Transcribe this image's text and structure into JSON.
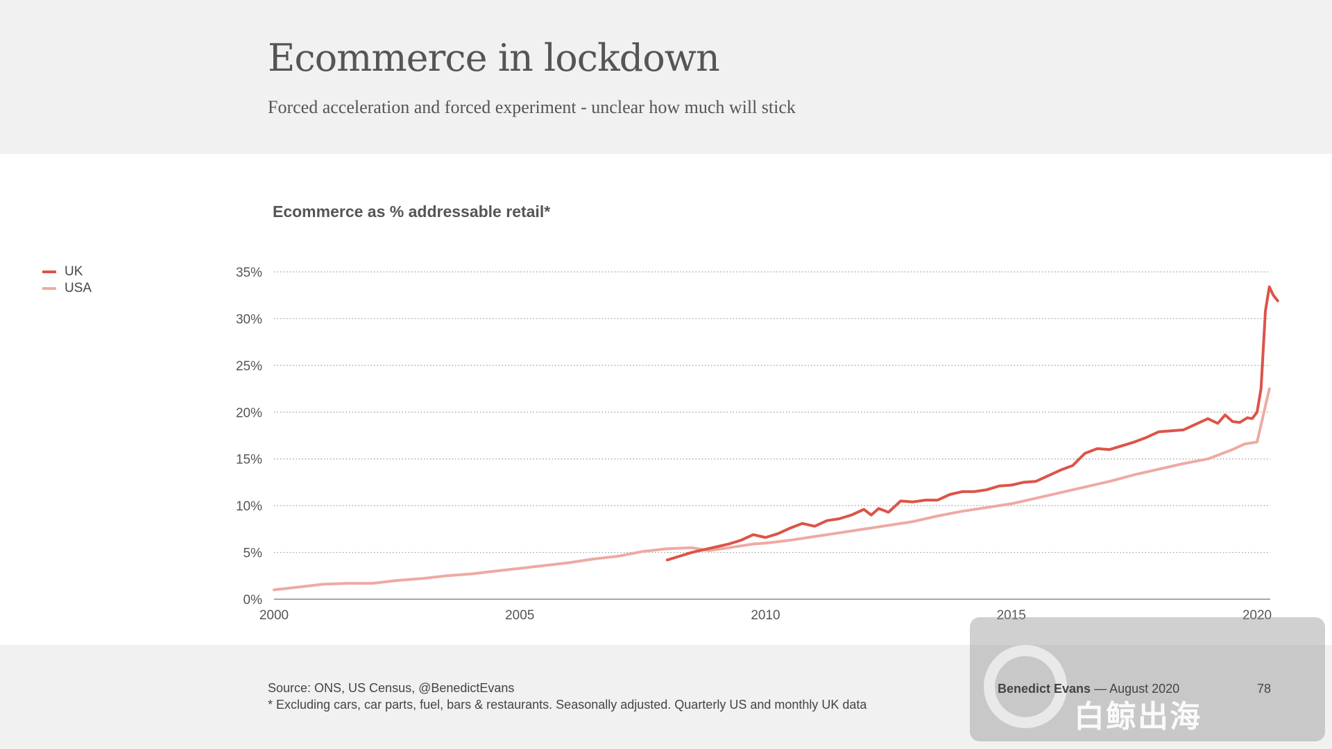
{
  "header": {
    "title": "Ecommerce in lockdown",
    "subtitle": "Forced acceleration and forced experiment - unclear how much will stick"
  },
  "footer": {
    "source": "Source: ONS, US Census, @BenedictEvans",
    "note": "* Excluding cars, car parts, fuel, bars & restaurants. Seasonally adjusted. Quarterly US and monthly UK data",
    "author": "Benedict Evans",
    "date": "— August 2020",
    "page": "78"
  },
  "watermark": {
    "text": "白鲸出海"
  },
  "colors": {
    "uk": "#dc5447",
    "usa": "#eeaaa3",
    "grid": "#999999",
    "text": "#555555"
  },
  "chart_data": {
    "type": "line",
    "title": "Ecommerce as % addressable retail*",
    "xlabel": "",
    "ylabel": "",
    "xlim": [
      2000,
      2020.6
    ],
    "ylim": [
      0,
      35
    ],
    "grid": true,
    "legend_position": "top-left",
    "x_ticks": [
      2000,
      2005,
      2010,
      2015,
      2020
    ],
    "x_tick_labels": [
      "2000",
      "2005",
      "2010",
      "2015",
      "2020"
    ],
    "y_ticks": [
      0,
      5,
      10,
      15,
      20,
      25,
      30,
      35
    ],
    "y_tick_labels": [
      "0%",
      "5%",
      "10%",
      "15%",
      "20%",
      "25%",
      "30%",
      "35%"
    ],
    "series": [
      {
        "name": "UK",
        "x": [
          2008.0,
          2008.25,
          2008.5,
          2008.75,
          2009.0,
          2009.25,
          2009.5,
          2009.75,
          2010.0,
          2010.25,
          2010.5,
          2010.75,
          2011.0,
          2011.25,
          2011.5,
          2011.75,
          2012.0,
          2012.15,
          2012.3,
          2012.5,
          2012.75,
          2013.0,
          2013.25,
          2013.5,
          2013.75,
          2014.0,
          2014.25,
          2014.5,
          2014.75,
          2015.0,
          2015.25,
          2015.5,
          2015.75,
          2016.0,
          2016.25,
          2016.5,
          2016.75,
          2017.0,
          2017.25,
          2017.5,
          2017.75,
          2018.0,
          2018.25,
          2018.5,
          2018.75,
          2019.0,
          2019.2,
          2019.35,
          2019.5,
          2019.65,
          2019.8,
          2019.9,
          2020.0,
          2020.08,
          2020.17,
          2020.25,
          2020.33,
          2020.42
        ],
        "values": [
          4.2,
          4.6,
          5.0,
          5.3,
          5.6,
          5.9,
          6.3,
          6.9,
          6.6,
          7.0,
          7.6,
          8.1,
          7.8,
          8.4,
          8.6,
          9.0,
          9.6,
          9.0,
          9.7,
          9.3,
          10.5,
          10.4,
          10.6,
          10.6,
          11.2,
          11.5,
          11.5,
          11.7,
          12.1,
          12.2,
          12.5,
          12.6,
          13.2,
          13.8,
          14.3,
          15.6,
          16.1,
          16.0,
          16.4,
          16.8,
          17.3,
          17.9,
          18.0,
          18.1,
          18.7,
          19.3,
          18.8,
          19.7,
          19.0,
          18.9,
          19.4,
          19.3,
          20.0,
          22.5,
          30.8,
          33.4,
          32.5,
          31.9
        ]
      },
      {
        "name": "USA",
        "x": [
          2000.0,
          2000.5,
          2001.0,
          2001.5,
          2002.0,
          2002.5,
          2003.0,
          2003.5,
          2004.0,
          2004.5,
          2005.0,
          2005.5,
          2006.0,
          2006.5,
          2007.0,
          2007.5,
          2008.0,
          2008.5,
          2008.85,
          2009.25,
          2009.75,
          2010.0,
          2010.5,
          2011.0,
          2011.5,
          2012.0,
          2012.5,
          2013.0,
          2013.5,
          2014.0,
          2014.5,
          2015.0,
          2015.5,
          2016.0,
          2016.5,
          2017.0,
          2017.5,
          2018.0,
          2018.5,
          2019.0,
          2019.5,
          2019.75,
          2020.0,
          2020.25
        ],
        "values": [
          1.0,
          1.3,
          1.6,
          1.7,
          1.7,
          2.0,
          2.2,
          2.5,
          2.7,
          3.0,
          3.3,
          3.6,
          3.9,
          4.3,
          4.6,
          5.1,
          5.4,
          5.5,
          5.2,
          5.5,
          5.9,
          6.0,
          6.3,
          6.7,
          7.1,
          7.5,
          7.9,
          8.3,
          8.9,
          9.4,
          9.8,
          10.2,
          10.8,
          11.4,
          12.0,
          12.6,
          13.3,
          13.9,
          14.5,
          15.0,
          16.0,
          16.6,
          16.8,
          22.5
        ]
      }
    ]
  }
}
